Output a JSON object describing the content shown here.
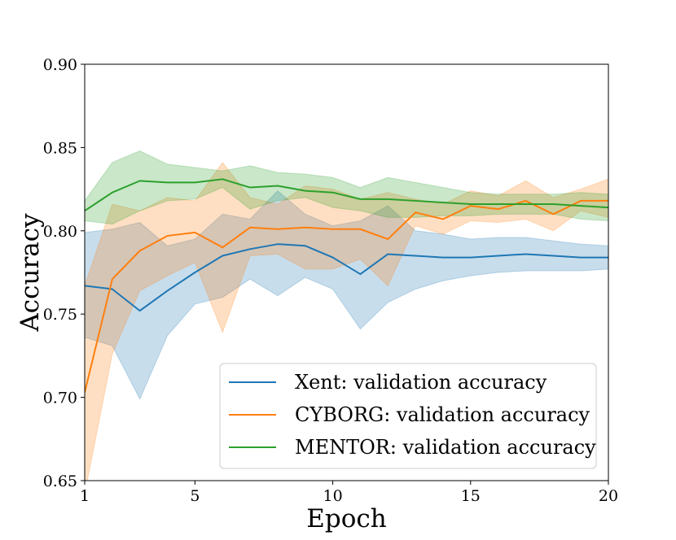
{
  "chart_data": {
    "type": "line",
    "title": "",
    "xlabel": "Epoch",
    "ylabel": "Accuracy",
    "xlim": [
      1,
      20
    ],
    "ylim": [
      0.65,
      0.9
    ],
    "x_ticks": [
      1,
      5,
      10,
      15,
      20
    ],
    "x_tick_labels": [
      "1",
      "5",
      "10",
      "15",
      "20"
    ],
    "y_ticks": [
      0.65,
      0.7,
      0.75,
      0.8,
      0.85,
      0.9
    ],
    "y_tick_labels": [
      "0.65",
      "0.70",
      "0.75",
      "0.80",
      "0.85",
      "0.90"
    ],
    "grid": false,
    "legend_position": "lower-right",
    "x": [
      1,
      2,
      3,
      4,
      5,
      6,
      7,
      8,
      9,
      10,
      11,
      12,
      13,
      14,
      15,
      16,
      17,
      18,
      19,
      20
    ],
    "series": [
      {
        "name": "Xent: validation accuracy",
        "color": "#1f77b4",
        "values": [
          0.767,
          0.765,
          0.752,
          0.764,
          0.775,
          0.785,
          0.789,
          0.792,
          0.791,
          0.784,
          0.774,
          0.786,
          0.785,
          0.784,
          0.784,
          0.785,
          0.786,
          0.785,
          0.784,
          0.784
        ],
        "lower": [
          0.736,
          0.731,
          0.699,
          0.737,
          0.756,
          0.76,
          0.771,
          0.761,
          0.772,
          0.765,
          0.741,
          0.757,
          0.765,
          0.77,
          0.773,
          0.775,
          0.776,
          0.776,
          0.776,
          0.777
        ],
        "upper": [
          0.799,
          0.801,
          0.805,
          0.791,
          0.795,
          0.81,
          0.807,
          0.824,
          0.81,
          0.803,
          0.806,
          0.815,
          0.8,
          0.798,
          0.795,
          0.796,
          0.796,
          0.794,
          0.792,
          0.791
        ]
      },
      {
        "name": "CYBORG: validation accuracy",
        "color": "#ff7f0e",
        "values": [
          0.703,
          0.771,
          0.788,
          0.797,
          0.799,
          0.79,
          0.802,
          0.801,
          0.802,
          0.801,
          0.801,
          0.795,
          0.811,
          0.807,
          0.815,
          0.813,
          0.818,
          0.81,
          0.818,
          0.818
        ],
        "lower": [
          0.642,
          0.726,
          0.764,
          0.773,
          0.781,
          0.739,
          0.785,
          0.786,
          0.777,
          0.777,
          0.783,
          0.767,
          0.803,
          0.798,
          0.806,
          0.805,
          0.807,
          0.8,
          0.812,
          0.808
        ],
        "upper": [
          0.767,
          0.816,
          0.812,
          0.82,
          0.818,
          0.841,
          0.82,
          0.816,
          0.827,
          0.825,
          0.819,
          0.823,
          0.819,
          0.816,
          0.824,
          0.821,
          0.83,
          0.82,
          0.825,
          0.831
        ]
      },
      {
        "name": "MENTOR: validation accuracy",
        "color": "#2ca02c",
        "values": [
          0.812,
          0.823,
          0.83,
          0.829,
          0.829,
          0.831,
          0.826,
          0.827,
          0.824,
          0.823,
          0.819,
          0.819,
          0.818,
          0.817,
          0.816,
          0.816,
          0.816,
          0.816,
          0.815,
          0.814
        ],
        "lower": [
          0.806,
          0.804,
          0.812,
          0.818,
          0.819,
          0.826,
          0.813,
          0.818,
          0.82,
          0.814,
          0.812,
          0.808,
          0.808,
          0.809,
          0.809,
          0.81,
          0.81,
          0.81,
          0.807,
          0.806
        ],
        "upper": [
          0.818,
          0.841,
          0.848,
          0.84,
          0.838,
          0.836,
          0.839,
          0.835,
          0.834,
          0.832,
          0.826,
          0.832,
          0.829,
          0.826,
          0.823,
          0.822,
          0.822,
          0.822,
          0.823,
          0.822
        ]
      }
    ]
  }
}
